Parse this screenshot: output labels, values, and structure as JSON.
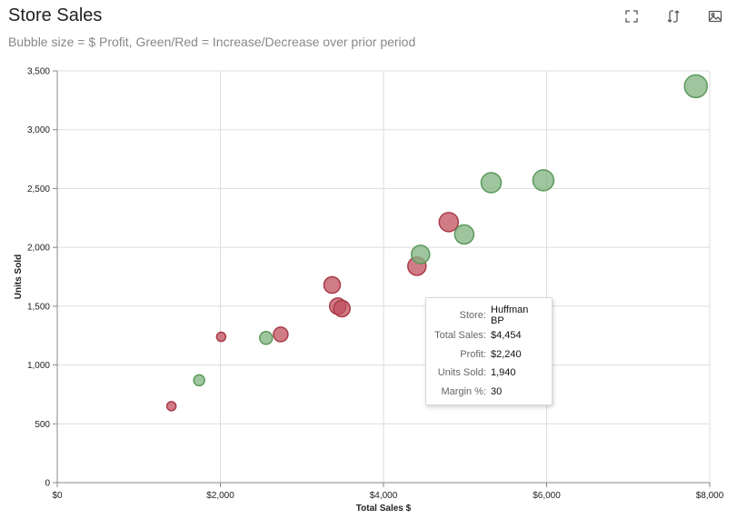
{
  "header": {
    "title": "Store Sales",
    "subtitle": "Bubble size = $ Profit, Green/Red = Increase/Decrease over prior period"
  },
  "toolbar": {
    "icons": [
      "fullscreen-icon",
      "swap-icon",
      "image-icon"
    ]
  },
  "colors": {
    "increase_fill": "#7fb27f",
    "increase_stroke": "#5a9a5a",
    "decrease_fill": "#c0505f",
    "decrease_stroke": "#a83a48",
    "grid": "#dddddd"
  },
  "chart_data": {
    "type": "scatter",
    "title": "Store Sales",
    "subtitle": "Bubble size = $ Profit, Green/Red = Increase/Decrease over prior period",
    "xlabel": "Total Sales $",
    "ylabel": "Units Sold",
    "xlim": [
      0,
      8000
    ],
    "ylim": [
      0,
      3500
    ],
    "xticks": [
      0,
      2000,
      4000,
      6000,
      8000
    ],
    "xtick_labels": [
      "$0",
      "$2,000",
      "$4,000",
      "$6,000",
      "$8,000"
    ],
    "yticks": [
      0,
      500,
      1000,
      1500,
      2000,
      2500,
      3000,
      3500
    ],
    "ytick_labels": [
      "0",
      "500",
      "1,000",
      "1,500",
      "2,000",
      "2,500",
      "3,000",
      "3,500"
    ],
    "grid": true,
    "points": [
      {
        "x": 1400,
        "y": 650,
        "size": 5,
        "change": "decrease"
      },
      {
        "x": 1740,
        "y": 870,
        "size": 6,
        "change": "increase"
      },
      {
        "x": 2010,
        "y": 1240,
        "size": 5,
        "change": "decrease"
      },
      {
        "x": 2560,
        "y": 1230,
        "size": 7,
        "change": "increase"
      },
      {
        "x": 2740,
        "y": 1260,
        "size": 8,
        "change": "decrease"
      },
      {
        "x": 3370,
        "y": 1680,
        "size": 9,
        "change": "decrease"
      },
      {
        "x": 3440,
        "y": 1500,
        "size": 9,
        "change": "decrease"
      },
      {
        "x": 3490,
        "y": 1480,
        "size": 9,
        "change": "decrease"
      },
      {
        "x": 4410,
        "y": 1840,
        "size": 10,
        "change": "decrease"
      },
      {
        "x": 4454,
        "y": 1940,
        "size": 10,
        "change": "increase"
      },
      {
        "x": 4800,
        "y": 2215,
        "size": 10.5,
        "change": "decrease"
      },
      {
        "x": 4990,
        "y": 2110,
        "size": 10.5,
        "change": "increase"
      },
      {
        "x": 5320,
        "y": 2550,
        "size": 11,
        "change": "increase"
      },
      {
        "x": 5960,
        "y": 2570,
        "size": 11.5,
        "change": "increase"
      },
      {
        "x": 7830,
        "y": 3370,
        "size": 12.5,
        "change": "increase"
      }
    ]
  },
  "tooltip": {
    "rows": [
      {
        "label": "Store:",
        "value": "Huffman BP"
      },
      {
        "label": "Total Sales:",
        "value": "$4,454"
      },
      {
        "label": "Profit:",
        "value": "$2,240"
      },
      {
        "label": "Units Sold:",
        "value": "1,940"
      },
      {
        "label": "Margin %:",
        "value": "30"
      }
    ]
  }
}
